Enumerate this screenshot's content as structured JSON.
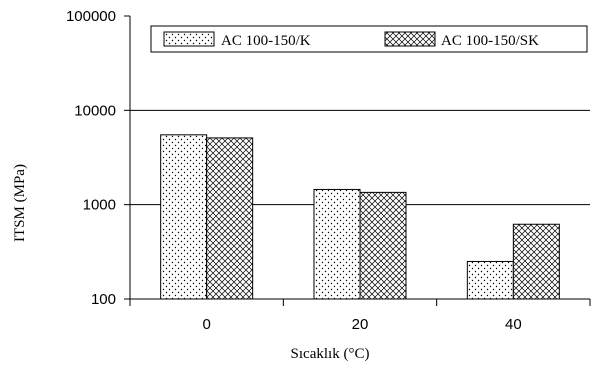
{
  "chart_data": {
    "type": "bar",
    "ylabel": "ITSM (MPa)",
    "xlabel": "Sıcaklık (°C)",
    "categories": [
      "0",
      "20",
      "40"
    ],
    "y_scale": "log",
    "ylim": [
      100,
      100000
    ],
    "y_ticks": [
      "100",
      "1000",
      "10000",
      "100000"
    ],
    "grid": "horizontal",
    "legend_position": "top",
    "series": [
      {
        "name": "AC 100-150/K",
        "values": [
          5500,
          1450,
          250
        ],
        "pattern": "dots"
      },
      {
        "name": "AC 100-150/SK",
        "values": [
          5100,
          1350,
          620
        ],
        "pattern": "crosshatch"
      }
    ]
  }
}
